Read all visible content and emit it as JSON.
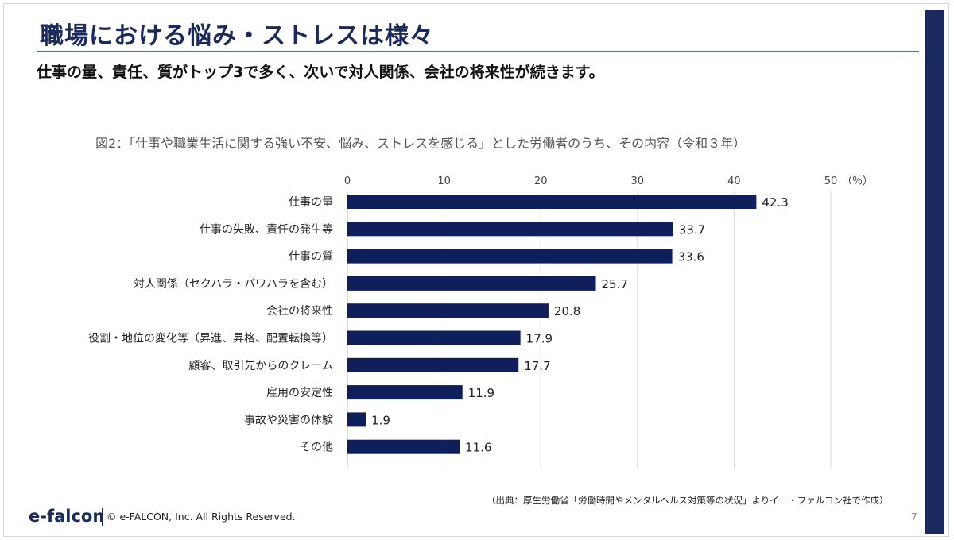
{
  "slide": {
    "title": "職場における悩み・ストレスは様々",
    "subtitle": "仕事の量、責任、質がトップ3で多く、次いで対人関係、会社の将来性が続きます。",
    "source": "（出典：厚生労働省「労働時間やメンタルヘルス対策等の状況」よりイー・ファルコン社で作成）",
    "logo": "e-falcon",
    "copyright": "© e-FALCON, Inc. All Rights Reserved.",
    "page_number": "7",
    "colors": {
      "accent": "#1b2a5e",
      "bar": "#0f1f5c",
      "rule": "#4a6fc0"
    }
  },
  "chart_data": {
    "type": "bar",
    "orientation": "horizontal",
    "title": "図2：「仕事や職業生活に関する強い不安、悩み、ストレスを感じる」とした労働者のうち、その内容（令和３年）",
    "unit_label": "（％）",
    "xlim": [
      0,
      50
    ],
    "ticks": [
      0,
      10,
      20,
      30,
      40,
      50
    ],
    "grid": true,
    "axis_position": "top",
    "categories": [
      "仕事の量",
      "仕事の失敗、責任の発生等",
      "仕事の質",
      "対人関係（セクハラ・パワハラを含む）",
      "会社の将来性",
      "役割・地位の変化等（昇進、昇格、配置転換等）",
      "顧客、取引先からのクレーム",
      "雇用の安定性",
      "事故や災害の体験",
      "その他"
    ],
    "values": [
      42.3,
      33.7,
      33.6,
      25.7,
      20.8,
      17.9,
      17.7,
      11.9,
      1.9,
      11.6
    ],
    "value_labels": [
      "42.3",
      "33.7",
      "33.6",
      "25.7",
      "20.8",
      "17.9",
      "17.7",
      "11.9",
      "1.9",
      "11.6"
    ]
  }
}
